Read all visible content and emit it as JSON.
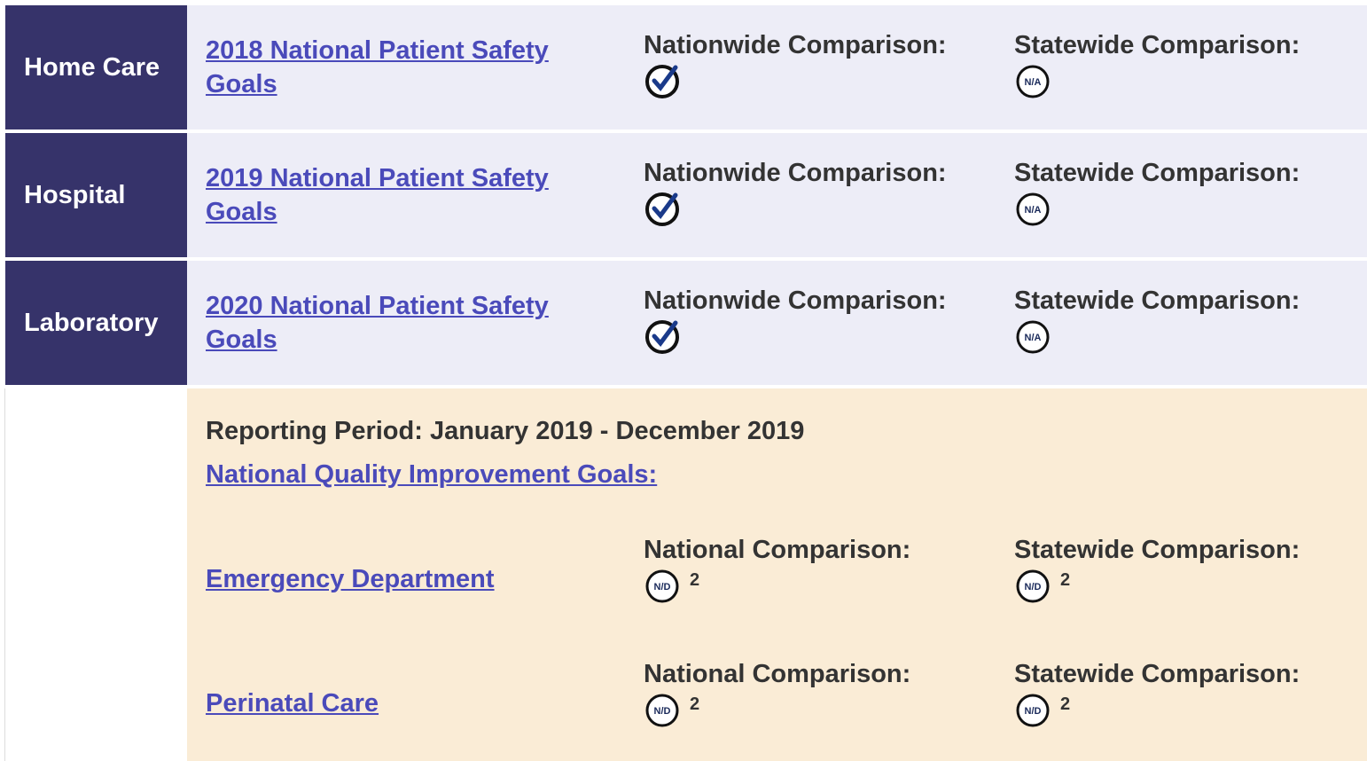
{
  "rows": [
    {
      "program": "Home Care",
      "link": "2018 National Patient Safety Goals",
      "national": "Nationwide Comparison:",
      "statewide": "Statewide Comparison:",
      "statewide_icon": "N/A"
    },
    {
      "program": "Hospital",
      "link": "2019 National Patient Safety Goals",
      "national": "Nationwide Comparison:",
      "statewide": "Statewide Comparison:",
      "statewide_icon": "N/A"
    },
    {
      "program": "Laboratory",
      "link": "2020 National Patient Safety Goals",
      "national": "Nationwide Comparison:",
      "statewide": "Statewide Comparison:",
      "statewide_icon": "N/A"
    }
  ],
  "reporting": {
    "period": "Reporting Period: January 2019 - December 2019",
    "link": "National Quality Improvement Goals:",
    "items": [
      {
        "name": "Emergency Department",
        "national": "National Comparison:",
        "national_icon": "N/D",
        "national_note": "2",
        "statewide": "Statewide Comparison:",
        "statewide_icon": "N/D",
        "statewide_note": "2"
      },
      {
        "name": "Perinatal Care",
        "national": "National Comparison:",
        "national_icon": "N/D",
        "national_note": "2",
        "statewide": "Statewide Comparison:",
        "statewide_icon": "N/D",
        "statewide_note": "2"
      }
    ]
  }
}
